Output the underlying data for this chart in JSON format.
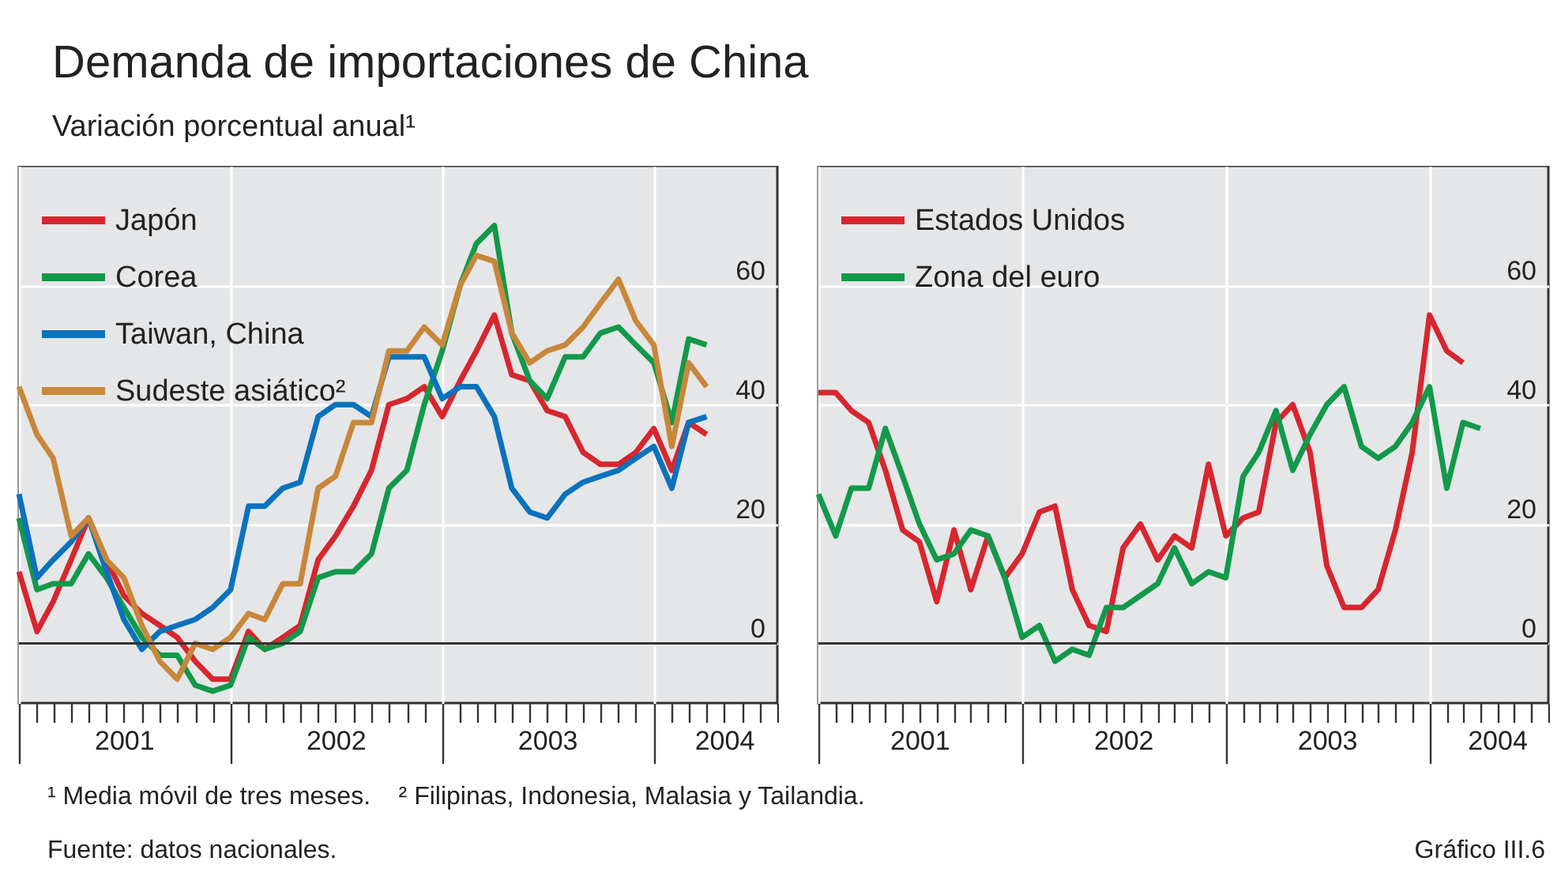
{
  "chart_data": [
    {
      "type": "line",
      "title": "Demanda de importaciones de China",
      "subtitle": "Variación porcentual anual¹",
      "annotations": [
        "¹ Media móvil de tres meses.    ² Filipinas, Indonesia, Malasia y Tailandia.",
        "Fuente: datos nacionales.",
        "Gráfico III.6"
      ],
      "x": [
        "2001-01",
        "2001-02",
        "2001-03",
        "2001-04",
        "2001-05",
        "2001-06",
        "2001-07",
        "2001-08",
        "2001-09",
        "2001-10",
        "2001-11",
        "2001-12",
        "2002-01",
        "2002-02",
        "2002-03",
        "2002-04",
        "2002-05",
        "2002-06",
        "2002-07",
        "2002-08",
        "2002-09",
        "2002-10",
        "2002-11",
        "2002-12",
        "2003-01",
        "2003-02",
        "2003-03",
        "2003-04",
        "2003-05",
        "2003-06",
        "2003-07",
        "2003-08",
        "2003-09",
        "2003-10",
        "2003-11",
        "2003-12",
        "2004-01",
        "2004-02",
        "2004-03",
        "2004-04"
      ],
      "series": [
        {
          "name": "Japón",
          "color": "#d7262e",
          "values": [
            12,
            2,
            7,
            14,
            21,
            14,
            8,
            5,
            3,
            1,
            -3,
            -6,
            -6,
            2,
            -1,
            1,
            3,
            14,
            18,
            23,
            29,
            40,
            41,
            43,
            38,
            44,
            49,
            55,
            45,
            44,
            39,
            38,
            32,
            30,
            30,
            32,
            36,
            29,
            37,
            35
          ]
        },
        {
          "name": "Corea",
          "color": "#12994a",
          "values": [
            21,
            9,
            10,
            10,
            15,
            11,
            6,
            1,
            -2,
            -2,
            -7,
            -8,
            -7,
            1,
            -1,
            0,
            2,
            11,
            12,
            12,
            15,
            26,
            29,
            40,
            49,
            60,
            67,
            70,
            52,
            44,
            41,
            48,
            48,
            52,
            53,
            50,
            47,
            37,
            51,
            50
          ]
        },
        {
          "name": "Taiwan, China",
          "color": "#0a72bc",
          "values": [
            25,
            11,
            14,
            17,
            21,
            12,
            4,
            -1,
            2,
            3,
            4,
            6,
            9,
            23,
            23,
            26,
            27,
            38,
            40,
            40,
            38,
            48,
            48,
            48,
            41,
            43,
            43,
            38,
            26,
            22,
            21,
            25,
            27,
            28,
            29,
            31,
            33,
            26,
            37,
            38
          ]
        },
        {
          "name": "Sudeste asiático²",
          "color": "#c8873a",
          "values": [
            43,
            35,
            31,
            18,
            21,
            14,
            11,
            3,
            -3,
            -6,
            0,
            -1,
            1,
            5,
            4,
            10,
            10,
            26,
            28,
            37,
            37,
            49,
            49,
            53,
            50,
            60,
            65,
            64,
            52,
            47,
            49,
            50,
            53,
            57,
            61,
            54,
            50,
            33,
            47,
            43
          ]
        }
      ],
      "xlim": [
        "2001-01",
        "2004-08"
      ],
      "ylim": [
        -10,
        80
      ],
      "yticks": [
        0,
        20,
        40,
        60
      ],
      "xticks": [
        {
          "value": "2001-01",
          "label": null
        },
        {
          "value": "2001-02",
          "label": null
        },
        {
          "value": "2001-03",
          "label": null
        },
        {
          "value": "2001-04",
          "label": null
        },
        {
          "value": "2001-05",
          "label": null
        },
        {
          "value": "2001-06",
          "label": null
        },
        {
          "value": "2001-07",
          "label": "2001"
        },
        {
          "value": "2001-08",
          "label": null
        },
        {
          "value": "2001-09",
          "label": null
        },
        {
          "value": "2001-10",
          "label": null
        },
        {
          "value": "2001-11",
          "label": null
        },
        {
          "value": "2001-12",
          "label": null
        },
        {
          "value": "2002-01",
          "label": null
        },
        {
          "value": "2002-02",
          "label": null
        },
        {
          "value": "2002-03",
          "label": null
        },
        {
          "value": "2002-04",
          "label": null
        },
        {
          "value": "2002-05",
          "label": null
        },
        {
          "value": "2002-06",
          "label": null
        },
        {
          "value": "2002-07",
          "label": "2002"
        },
        {
          "value": "2002-08",
          "label": null
        },
        {
          "value": "2002-09",
          "label": null
        },
        {
          "value": "2002-10",
          "label": null
        },
        {
          "value": "2002-11",
          "label": null
        },
        {
          "value": "2002-12",
          "label": null
        },
        {
          "value": "2003-01",
          "label": null
        },
        {
          "value": "2003-02",
          "label": null
        },
        {
          "value": "2003-03",
          "label": null
        },
        {
          "value": "2003-04",
          "label": null
        },
        {
          "value": "2003-05",
          "label": null
        },
        {
          "value": "2003-06",
          "label": null
        },
        {
          "value": "2003-07",
          "label": "2003"
        },
        {
          "value": "2003-08",
          "label": null
        },
        {
          "value": "2003-09",
          "label": null
        },
        {
          "value": "2003-10",
          "label": null
        },
        {
          "value": "2003-11",
          "label": null
        },
        {
          "value": "2003-12",
          "label": null
        },
        {
          "value": "2004-01",
          "label": null
        },
        {
          "value": "2004-02",
          "label": null
        },
        {
          "value": "2004-03",
          "label": null
        },
        {
          "value": "2004-04",
          "label": null
        },
        {
          "value": "2004-05",
          "label": "2004"
        },
        {
          "value": "2004-06",
          "label": null
        },
        {
          "value": "2004-07",
          "label": null
        },
        {
          "value": "2004-08",
          "label": null
        }
      ],
      "ref_lines": [
        {
          "axis": "y",
          "value": 0,
          "color": "#333333"
        }
      ],
      "grid": true,
      "legend": "top left"
    },
    {
      "type": "line",
      "x": [
        "2001-01",
        "2001-02",
        "2001-03",
        "2001-04",
        "2001-05",
        "2001-06",
        "2001-07",
        "2001-08",
        "2001-09",
        "2001-10",
        "2001-11",
        "2001-12",
        "2002-01",
        "2002-02",
        "2002-03",
        "2002-04",
        "2002-05",
        "2002-06",
        "2002-07",
        "2002-08",
        "2002-09",
        "2002-10",
        "2002-11",
        "2002-12",
        "2003-01",
        "2003-02",
        "2003-03",
        "2003-04",
        "2003-05",
        "2003-06",
        "2003-07",
        "2003-08",
        "2003-09",
        "2003-10",
        "2003-11",
        "2003-12",
        "2004-01",
        "2004-02",
        "2004-03",
        "2004-04"
      ],
      "series": [
        {
          "name": "Estados Unidos",
          "color": "#d7262e",
          "values": [
            42,
            42,
            39,
            37,
            29,
            19,
            17,
            7,
            19,
            9,
            18,
            11,
            15,
            22,
            23,
            9,
            3,
            2,
            16,
            20,
            14,
            18,
            16,
            30,
            18,
            21,
            22,
            37,
            40,
            32,
            13,
            6,
            6,
            9,
            19,
            32,
            55,
            49,
            47,
            null
          ]
        },
        {
          "name": "Zona del euro",
          "color": "#12994a",
          "values": [
            25,
            18,
            26,
            26,
            36,
            28,
            20,
            14,
            15,
            19,
            18,
            11,
            1,
            3,
            -3,
            -1,
            -2,
            6,
            6,
            8,
            10,
            16,
            10,
            12,
            11,
            28,
            32,
            39,
            29,
            35,
            40,
            43,
            33,
            31,
            33,
            37,
            43,
            26,
            37,
            36
          ]
        }
      ],
      "xlim": [
        "2001-01",
        "2004-08"
      ],
      "ylim": [
        -10,
        80
      ],
      "yticks": [
        0,
        20,
        40,
        60
      ],
      "xticks": [
        {
          "value": "2001-01",
          "label": null
        },
        {
          "value": "2001-02",
          "label": null
        },
        {
          "value": "2001-03",
          "label": null
        },
        {
          "value": "2001-04",
          "label": null
        },
        {
          "value": "2001-05",
          "label": null
        },
        {
          "value": "2001-06",
          "label": null
        },
        {
          "value": "2001-07",
          "label": "2001"
        },
        {
          "value": "2001-08",
          "label": null
        },
        {
          "value": "2001-09",
          "label": null
        },
        {
          "value": "2001-10",
          "label": null
        },
        {
          "value": "2001-11",
          "label": null
        },
        {
          "value": "2001-12",
          "label": null
        },
        {
          "value": "2002-01",
          "label": null
        },
        {
          "value": "2002-02",
          "label": null
        },
        {
          "value": "2002-03",
          "label": null
        },
        {
          "value": "2002-04",
          "label": null
        },
        {
          "value": "2002-05",
          "label": null
        },
        {
          "value": "2002-06",
          "label": null
        },
        {
          "value": "2002-07",
          "label": "2002"
        },
        {
          "value": "2002-08",
          "label": null
        },
        {
          "value": "2002-09",
          "label": null
        },
        {
          "value": "2002-10",
          "label": null
        },
        {
          "value": "2002-11",
          "label": null
        },
        {
          "value": "2002-12",
          "label": null
        },
        {
          "value": "2003-01",
          "label": null
        },
        {
          "value": "2003-02",
          "label": null
        },
        {
          "value": "2003-03",
          "label": null
        },
        {
          "value": "2003-04",
          "label": null
        },
        {
          "value": "2003-05",
          "label": null
        },
        {
          "value": "2003-06",
          "label": null
        },
        {
          "value": "2003-07",
          "label": "2003"
        },
        {
          "value": "2003-08",
          "label": null
        },
        {
          "value": "2003-09",
          "label": null
        },
        {
          "value": "2003-10",
          "label": null
        },
        {
          "value": "2003-11",
          "label": null
        },
        {
          "value": "2003-12",
          "label": null
        },
        {
          "value": "2004-01",
          "label": null
        },
        {
          "value": "2004-02",
          "label": null
        },
        {
          "value": "2004-03",
          "label": null
        },
        {
          "value": "2004-04",
          "label": null
        },
        {
          "value": "2004-05",
          "label": "2004"
        },
        {
          "value": "2004-06",
          "label": null
        },
        {
          "value": "2004-07",
          "label": null
        },
        {
          "value": "2004-08",
          "label": null
        }
      ],
      "ref_lines": [
        {
          "axis": "y",
          "value": 0,
          "color": "#333333"
        }
      ],
      "grid": true,
      "legend": "top left"
    }
  ]
}
